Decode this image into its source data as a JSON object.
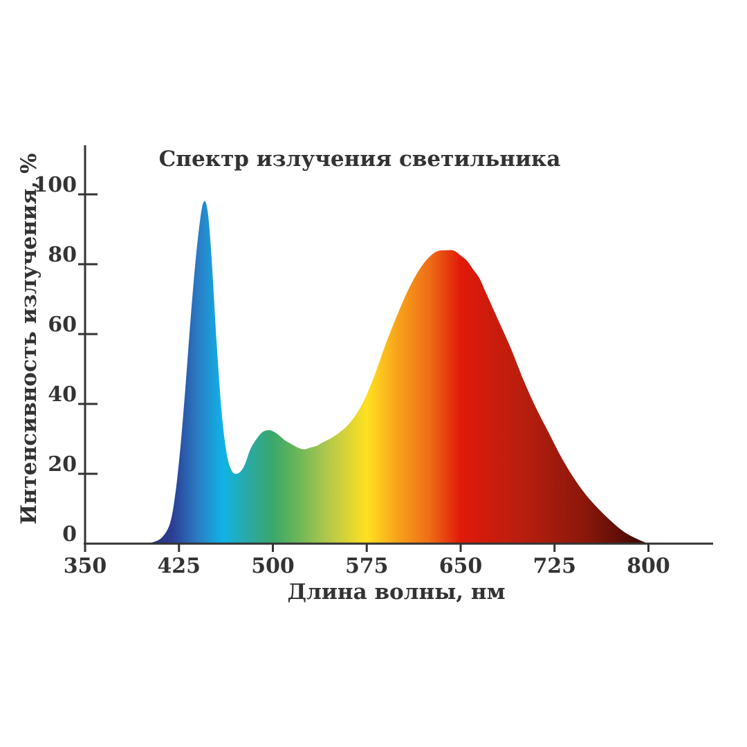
{
  "chart_data": {
    "type": "area",
    "title": "Спектр излучения светильника",
    "xlabel": "Длина волны, нм",
    "ylabel": "Интенсивность излучения, %",
    "xlim": [
      350,
      850
    ],
    "ylim": [
      0,
      113
    ],
    "xticks": [
      "350",
      "425",
      "500",
      "575",
      "650",
      "725",
      "800"
    ],
    "yticks": [
      "0",
      "20",
      "40",
      "60",
      "80",
      "100"
    ],
    "grid": false,
    "legend": "none",
    "series": [
      {
        "x": [
          395,
          405,
          412,
          418,
          422,
          426,
          430,
          434,
          438,
          442,
          445,
          448,
          451,
          455,
          459,
          463,
          467,
          471,
          475,
          478,
          482,
          487,
          492,
          497,
          501,
          505,
          510,
          515,
          520,
          525,
          530,
          535,
          540,
          550,
          560,
          570,
          580,
          590,
          600,
          610,
          620,
          630,
          640,
          645,
          650,
          655,
          660,
          665,
          670,
          680,
          690,
          700,
          710,
          720,
          730,
          740,
          750,
          760,
          770,
          780,
          790,
          800,
          803
        ],
        "y": [
          0,
          0.5,
          2,
          6,
          14,
          27,
          44,
          63,
          80,
          93,
          98,
          95,
          82,
          58,
          38,
          26,
          21,
          20,
          21,
          23,
          27,
          30,
          32,
          32.5,
          32,
          31,
          29.5,
          28.5,
          27.5,
          27,
          27.5,
          28,
          29,
          31,
          34,
          39,
          47,
          57,
          66,
          74,
          80,
          83.5,
          84,
          83.8,
          82.5,
          81,
          78.5,
          76,
          72,
          64,
          56,
          47,
          39,
          32,
          25,
          19,
          14,
          10,
          6.5,
          3.5,
          1.5,
          0,
          0
        ]
      }
    ],
    "fill_gradient": [
      {
        "nm": 395,
        "color": "#2a2a6e"
      },
      {
        "nm": 420,
        "color": "#2b3f96"
      },
      {
        "nm": 440,
        "color": "#2a7cc4"
      },
      {
        "nm": 460,
        "color": "#10b3e6"
      },
      {
        "nm": 480,
        "color": "#2aa9a5"
      },
      {
        "nm": 500,
        "color": "#3aa86a"
      },
      {
        "nm": 520,
        "color": "#6bb65a"
      },
      {
        "nm": 545,
        "color": "#b5c94a"
      },
      {
        "nm": 575,
        "color": "#ffe020"
      },
      {
        "nm": 600,
        "color": "#f7a21a"
      },
      {
        "nm": 625,
        "color": "#ef6d16"
      },
      {
        "nm": 650,
        "color": "#e01a0a"
      },
      {
        "nm": 700,
        "color": "#b81e0e"
      },
      {
        "nm": 750,
        "color": "#8a170a"
      },
      {
        "nm": 790,
        "color": "#4a0a06"
      }
    ]
  }
}
